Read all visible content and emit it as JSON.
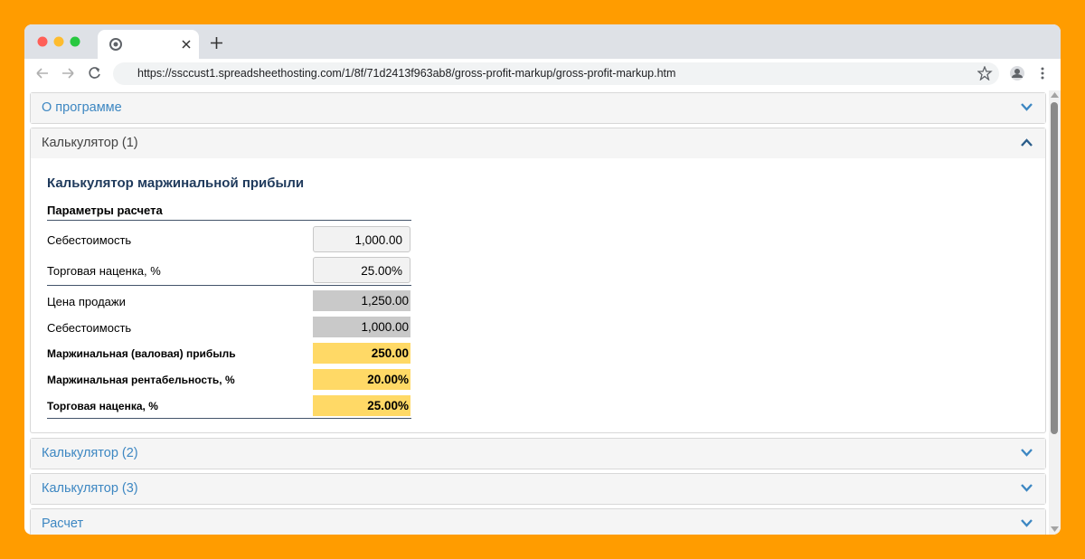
{
  "browser": {
    "url": "https://ssccust1.spreadsheethosting.com/1/8f/71d2413f963ab8/gross-profit-markup/gross-profit-markup.htm"
  },
  "accordion": {
    "sections": [
      "О программе",
      "Калькулятор (1)",
      "Калькулятор (2)",
      "Калькулятор (3)",
      "Расчет"
    ]
  },
  "calculator": {
    "title": "Калькулятор маржинальной прибыли",
    "params_header": "Параметры расчета",
    "inputs": [
      {
        "label": "Себестоимость",
        "value": "1,000.00"
      },
      {
        "label": "Торговая наценка, %",
        "value": "25.00%"
      }
    ],
    "results": [
      {
        "label": "Цена продажи",
        "value": "1,250.00"
      },
      {
        "label": "Себестоимость",
        "value": "1,000.00"
      },
      {
        "label": "Маржинальная (валовая) прибыль",
        "value": "250.00"
      },
      {
        "label": "Маржинальная рентабельность, %",
        "value": "20.00%"
      },
      {
        "label": "Торговая наценка, %",
        "value": "25.00%"
      }
    ]
  }
}
